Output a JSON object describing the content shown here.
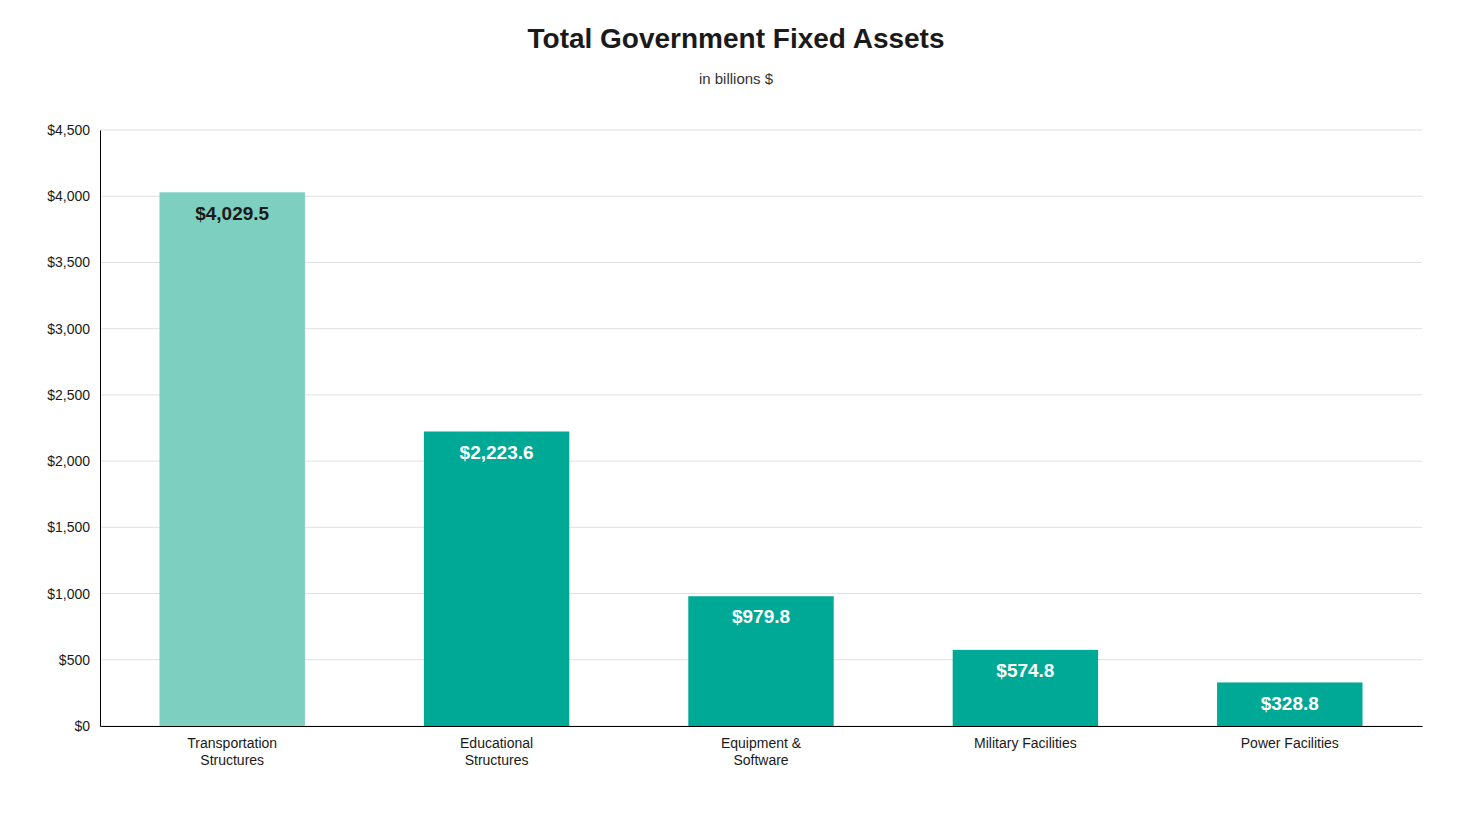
{
  "chart_data": {
    "type": "bar",
    "title": "Total Government Fixed Assets",
    "subtitle": "in billions $",
    "categories": [
      "Transportation\nStructures",
      "Educational\nStructures",
      "Equipment &\nSoftware",
      "Military Facilities",
      "Power Facilities"
    ],
    "values": [
      4029.5,
      2223.6,
      979.8,
      574.8,
      328.8
    ],
    "value_labels": [
      "$4,029.5",
      "$2,223.6",
      "$979.8",
      "$574.8",
      "$328.8"
    ],
    "colors": [
      "#7DCFBF",
      "#00A896",
      "#00A896",
      "#00A896",
      "#00A896"
    ],
    "ylim": [
      0,
      4500
    ],
    "yticks": [
      {
        "value": 0,
        "label": "$0"
      },
      {
        "value": 500,
        "label": "$500"
      },
      {
        "value": 1000,
        "label": "$1,000"
      },
      {
        "value": 1500,
        "label": "$1,500"
      },
      {
        "value": 2000,
        "label": "$2,000"
      },
      {
        "value": 2500,
        "label": "$2,500"
      },
      {
        "value": 3000,
        "label": "$3,000"
      },
      {
        "value": 3500,
        "label": "$3,500"
      },
      {
        "value": 4000,
        "label": "$4,000"
      },
      {
        "value": 4500,
        "label": "$4,500"
      }
    ],
    "grid": true,
    "data_labels": true
  }
}
